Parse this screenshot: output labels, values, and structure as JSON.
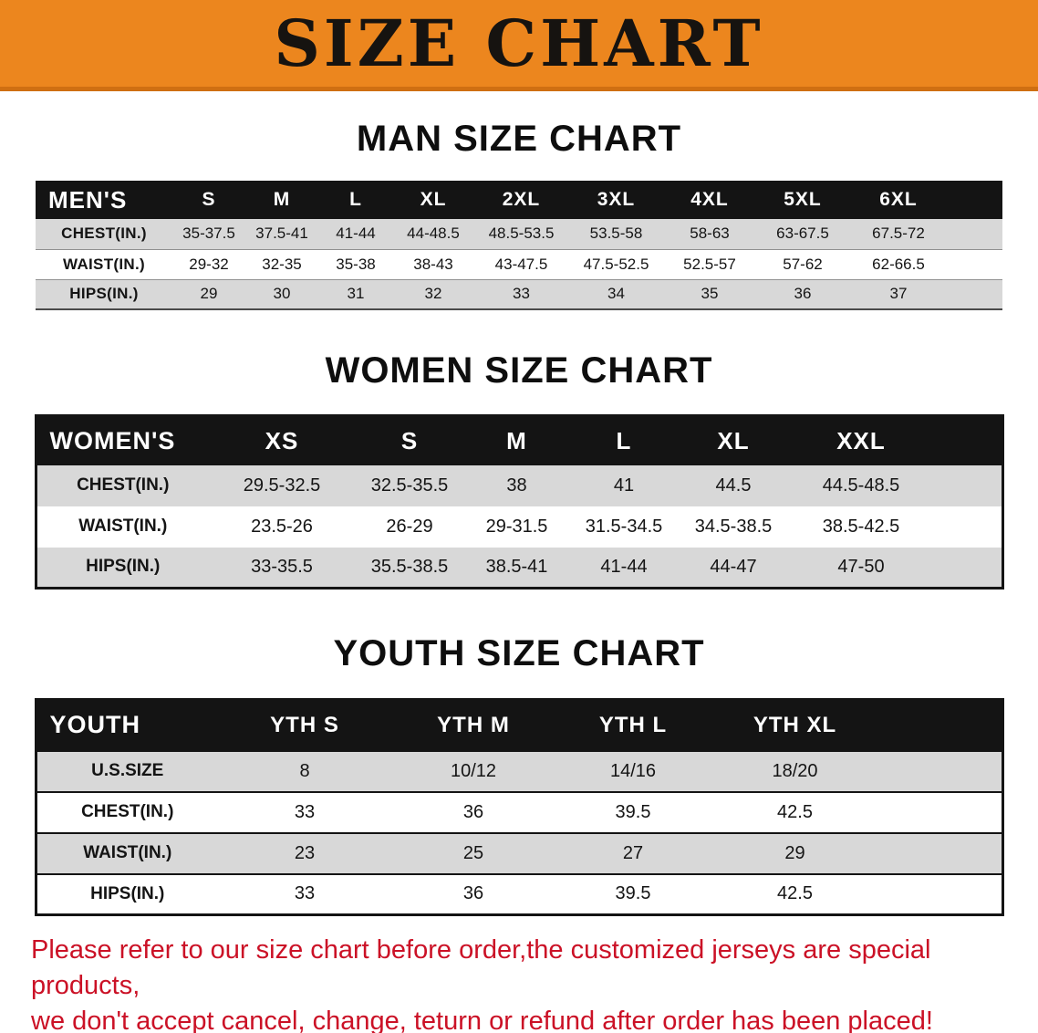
{
  "banner": {
    "title": "SIZE CHART",
    "bg_color": "#EC861E",
    "text_color": "#161310"
  },
  "colors": {
    "table_header_bg": "#141414",
    "row_stripe": "#d8d8d8",
    "disclaimer_red": "#CB1126"
  },
  "sections": [
    {
      "heading": "MAN SIZE CHART",
      "table": {
        "header": [
          "MEN'S",
          "S",
          "M",
          "L",
          "XL",
          "2XL",
          "3XL",
          "4XL",
          "5XL",
          "6XL"
        ],
        "rows": [
          [
            "CHEST(IN.)",
            "35-37.5",
            "37.5-41",
            "41-44",
            "44-48.5",
            "48.5-53.5",
            "53.5-58",
            "58-63",
            "63-67.5",
            "67.5-72"
          ],
          [
            "WAIST(IN.)",
            "29-32",
            "32-35",
            "35-38",
            "38-43",
            "43-47.5",
            "47.5-52.5",
            "52.5-57",
            "57-62",
            "62-66.5"
          ],
          [
            "HIPS(IN.)",
            "29",
            "30",
            "31",
            "32",
            "33",
            "34",
            "35",
            "36",
            "37"
          ]
        ]
      }
    },
    {
      "heading": "WOMEN SIZE CHART",
      "table": {
        "header": [
          "WOMEN'S",
          "XS",
          "S",
          "M",
          "L",
          "XL",
          "XXL"
        ],
        "rows": [
          [
            "CHEST(IN.)",
            "29.5-32.5",
            "32.5-35.5",
            "38",
            "41",
            "44.5",
            "44.5-48.5"
          ],
          [
            "WAIST(IN.)",
            "23.5-26",
            "26-29",
            "29-31.5",
            "31.5-34.5",
            "34.5-38.5",
            "38.5-42.5"
          ],
          [
            "HIPS(IN.)",
            "33-35.5",
            "35.5-38.5",
            "38.5-41",
            "41-44",
            "44-47",
            "47-50"
          ]
        ]
      }
    },
    {
      "heading": "YOUTH SIZE CHART",
      "table": {
        "header": [
          "YOUTH",
          "YTH S",
          "YTH M",
          "YTH L",
          "YTH XL"
        ],
        "rows": [
          [
            "U.S.SIZE",
            "8",
            "10/12",
            "14/16",
            "18/20"
          ],
          [
            "CHEST(IN.)",
            "33",
            "36",
            "39.5",
            "42.5"
          ],
          [
            "WAIST(IN.)",
            "23",
            "25",
            "27",
            "29"
          ],
          [
            "HIPS(IN.)",
            "33",
            "36",
            "39.5",
            "42.5"
          ]
        ]
      }
    }
  ],
  "disclaimer": {
    "lines": [
      "Please refer to our size chart before order,the customized jerseys are special products,",
      "we don't accept cancel, change, teturn or refund after order has been placed!"
    ]
  }
}
